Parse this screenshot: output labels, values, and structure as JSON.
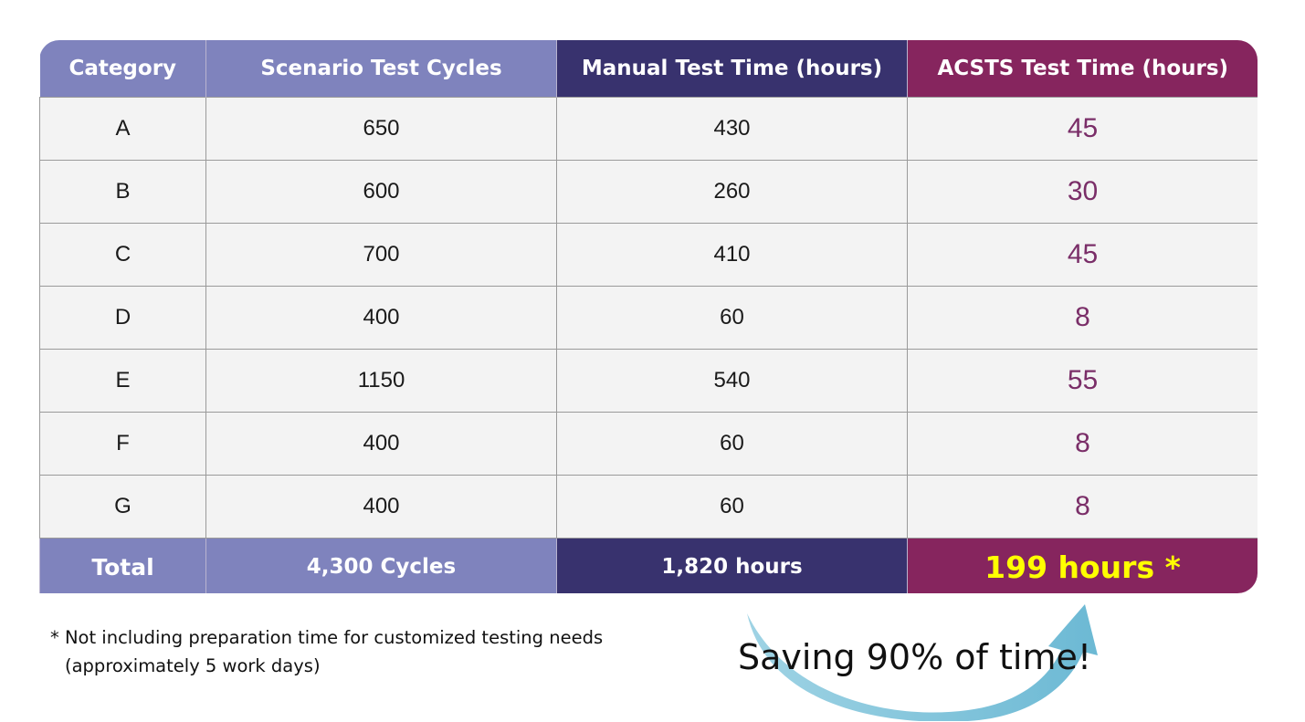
{
  "chart_data": {
    "type": "table",
    "columns": [
      "Category",
      "Scenario Test Cycles",
      "Manual Test Time (hours)",
      "ACSTS Test Time (hours)"
    ],
    "rows": [
      [
        "A",
        "650",
        "430",
        "45"
      ],
      [
        "B",
        "600",
        "260",
        "30"
      ],
      [
        "C",
        "700",
        "410",
        "45"
      ],
      [
        "D",
        "400",
        "60",
        "8"
      ],
      [
        "E",
        "1150",
        "540",
        "55"
      ],
      [
        "F",
        "400",
        "60",
        "8"
      ],
      [
        "G",
        "400",
        "60",
        "8"
      ]
    ],
    "total": [
      "Total",
      "4,300 Cycles",
      "1,820 hours",
      "199 hours *"
    ]
  },
  "footnote": {
    "line1": "* Not including preparation time for customized testing needs",
    "line2": "(approximately 5 work days)"
  },
  "callout": "Saving 90% of time!",
  "colors": {
    "header_lavender": "#7f83bd",
    "header_indigo": "#38326e",
    "header_plum": "#86255e",
    "acsts_value": "#7a2e68",
    "total_highlight": "#ffff00",
    "arrow": "#7dc3d9"
  }
}
